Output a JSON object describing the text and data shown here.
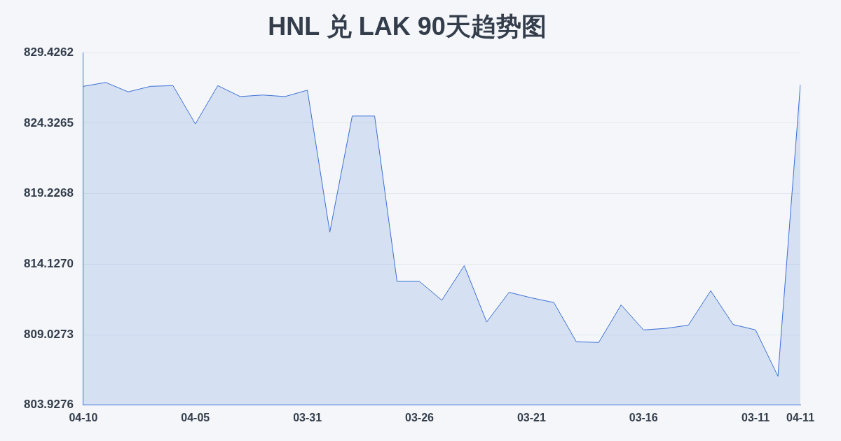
{
  "chart_data": {
    "type": "area",
    "title": "HNL 兑 LAK 90天趋势图",
    "categories": [
      "04-10",
      null,
      null,
      null,
      null,
      "04-05",
      null,
      null,
      null,
      null,
      "03-31",
      null,
      null,
      null,
      null,
      "03-26",
      null,
      null,
      null,
      null,
      "03-21",
      null,
      null,
      null,
      null,
      "03-16",
      null,
      null,
      null,
      null,
      "03-11",
      null,
      "04-11"
    ],
    "values": [
      826.99,
      827.27,
      826.59,
      826.99,
      827.04,
      824.27,
      827.04,
      826.25,
      826.36,
      826.25,
      826.71,
      816.45,
      824.84,
      824.84,
      812.88,
      812.88,
      811.52,
      814.02,
      809.94,
      812.09,
      811.69,
      811.35,
      808.52,
      808.46,
      811.18,
      809.37,
      809.48,
      809.71,
      812.2,
      809.76,
      809.37,
      806.02,
      827.1
    ],
    "color": "#3b6fd6",
    "ylim": [
      803.9276,
      829.4262
    ],
    "yticks": [
      803.9276,
      809.0273,
      {
        "value": 814.127,
        "label": "814.1270"
      },
      819.2268,
      824.3265,
      829.4262
    ],
    "grid": "y",
    "legend": false,
    "marker": "none"
  }
}
